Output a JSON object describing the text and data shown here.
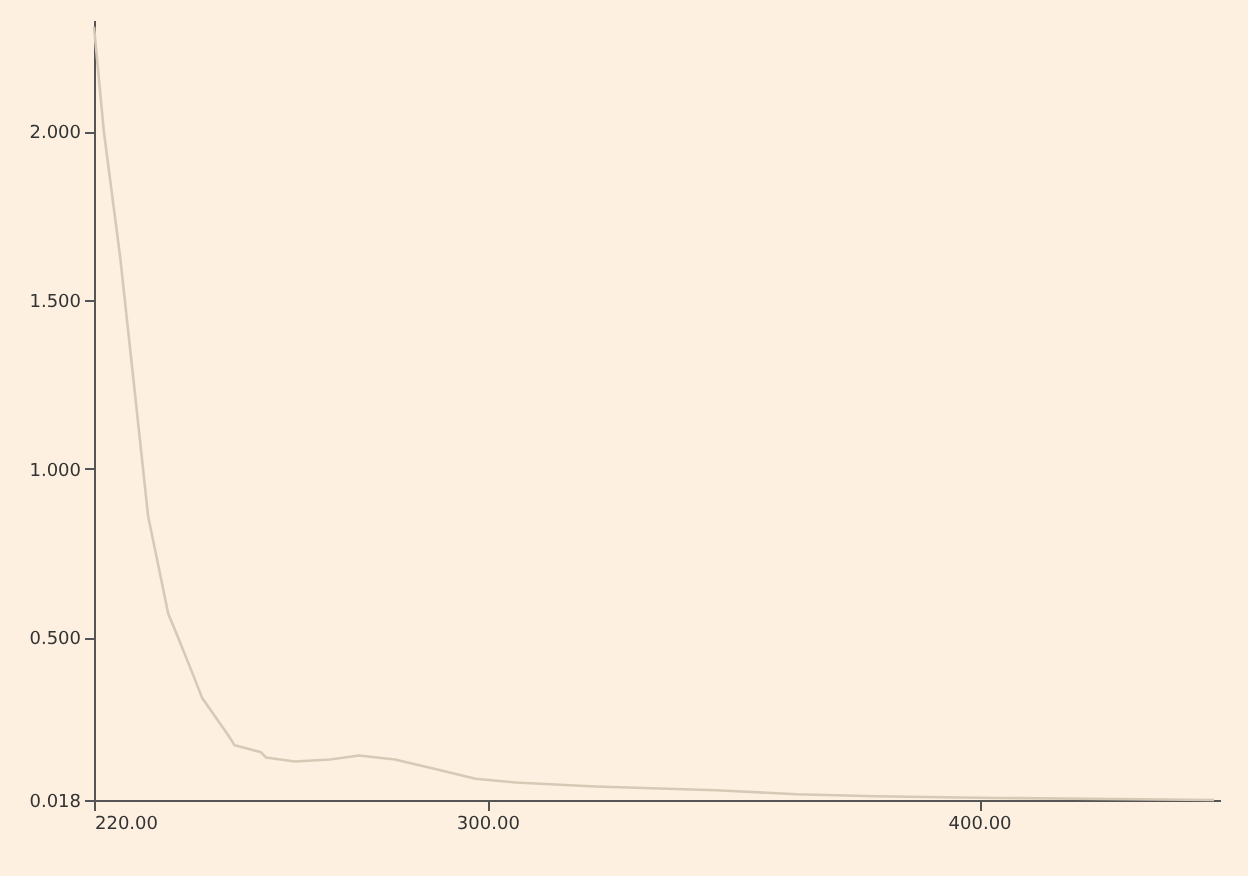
{
  "chart_data": {
    "type": "line",
    "x": [
      220,
      222,
      225.3,
      228.2,
      231,
      235.1,
      237.1,
      240.4,
      242,
      247.3,
      248.6,
      253.9,
      255,
      260.8,
      268,
      273.9,
      281.2,
      289.4,
      297.6,
      305.7,
      322,
      346.5,
      362.9,
      379,
      403.7,
      447.8
    ],
    "series": [
      {
        "color": "#d8c9b6",
        "values": [
          2.31,
          2.0,
          1.63,
          1.24,
          0.86,
          0.57,
          0.5,
          0.38,
          0.32,
          0.21,
          0.18,
          0.16,
          0.144,
          0.132,
          0.138,
          0.15,
          0.138,
          0.11,
          0.081,
          0.07,
          0.058,
          0.047,
          0.035,
          0.029,
          0.024,
          0.018
        ]
      }
    ],
    "xlim": [
      220,
      449
    ],
    "ylim": [
      0.018,
      2.33
    ],
    "xticks": [
      {
        "value": 220,
        "label": "220.00"
      },
      {
        "value": 300,
        "label": "300.00"
      },
      {
        "value": 400,
        "label": "400.00"
      }
    ],
    "yticks": [
      {
        "value": 0.018,
        "label": "0.018"
      },
      {
        "value": 0.5,
        "label": "0.500"
      },
      {
        "value": 1.0,
        "label": "1.000"
      },
      {
        "value": 1.5,
        "label": "1.500"
      },
      {
        "value": 2.0,
        "label": "2.000"
      }
    ],
    "grid": false,
    "marker": "none",
    "line_style": "solid"
  }
}
